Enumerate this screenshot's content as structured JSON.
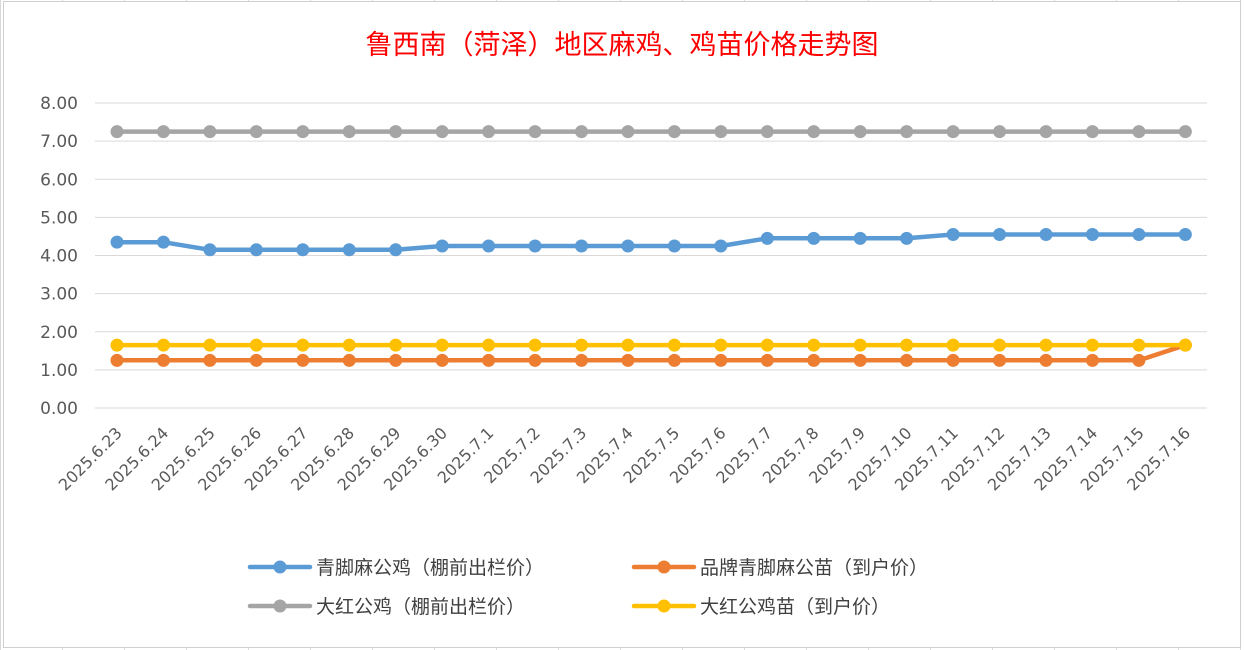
{
  "chart_data": {
    "type": "line",
    "title": "鲁西南（菏泽）地区麻鸡、鸡苗价格走势图",
    "xlabel": "",
    "ylabel": "",
    "ylim": [
      0,
      8
    ],
    "yticks": [
      "0.00",
      "1.00",
      "2.00",
      "3.00",
      "4.00",
      "5.00",
      "6.00",
      "7.00",
      "8.00"
    ],
    "grid": true,
    "legend_position": "bottom",
    "categories": [
      "2025.6.23",
      "2025.6.24",
      "2025.6.25",
      "2025.6.26",
      "2025.6.27",
      "2025.6.28",
      "2025.6.29",
      "2025.6.30",
      "2025.7.1",
      "2025.7.2",
      "2025.7.3",
      "2025.7.4",
      "2025.7.5",
      "2025.7.6",
      "2025.7.7",
      "2025.7.8",
      "2025.7.9",
      "2025.7.10",
      "2025.7.11",
      "2025.7.12",
      "2025.7.13",
      "2025.7.14",
      "2025.7.15",
      "2025.7.16"
    ],
    "series": [
      {
        "name": "青脚麻公鸡（棚前出栏价）",
        "color": "#5b9bd5",
        "values": [
          4.35,
          4.35,
          4.15,
          4.15,
          4.15,
          4.15,
          4.15,
          4.25,
          4.25,
          4.25,
          4.25,
          4.25,
          4.25,
          4.25,
          4.45,
          4.45,
          4.45,
          4.45,
          4.55,
          4.55,
          4.55,
          4.55,
          4.55,
          4.55
        ]
      },
      {
        "name": "品牌青脚麻公苗（到户价）",
        "color": "#ed7d31",
        "values": [
          1.25,
          1.25,
          1.25,
          1.25,
          1.25,
          1.25,
          1.25,
          1.25,
          1.25,
          1.25,
          1.25,
          1.25,
          1.25,
          1.25,
          1.25,
          1.25,
          1.25,
          1.25,
          1.25,
          1.25,
          1.25,
          1.25,
          1.25,
          1.65
        ]
      },
      {
        "name": "大红公鸡（棚前出栏价）",
        "color": "#a5a5a5",
        "values": [
          7.25,
          7.25,
          7.25,
          7.25,
          7.25,
          7.25,
          7.25,
          7.25,
          7.25,
          7.25,
          7.25,
          7.25,
          7.25,
          7.25,
          7.25,
          7.25,
          7.25,
          7.25,
          7.25,
          7.25,
          7.25,
          7.25,
          7.25,
          7.25
        ]
      },
      {
        "name": "大红公鸡苗（到户价）",
        "color": "#ffc000",
        "values": [
          1.65,
          1.65,
          1.65,
          1.65,
          1.65,
          1.65,
          1.65,
          1.65,
          1.65,
          1.65,
          1.65,
          1.65,
          1.65,
          1.65,
          1.65,
          1.65,
          1.65,
          1.65,
          1.65,
          1.65,
          1.65,
          1.65,
          1.65,
          1.65
        ]
      }
    ]
  }
}
